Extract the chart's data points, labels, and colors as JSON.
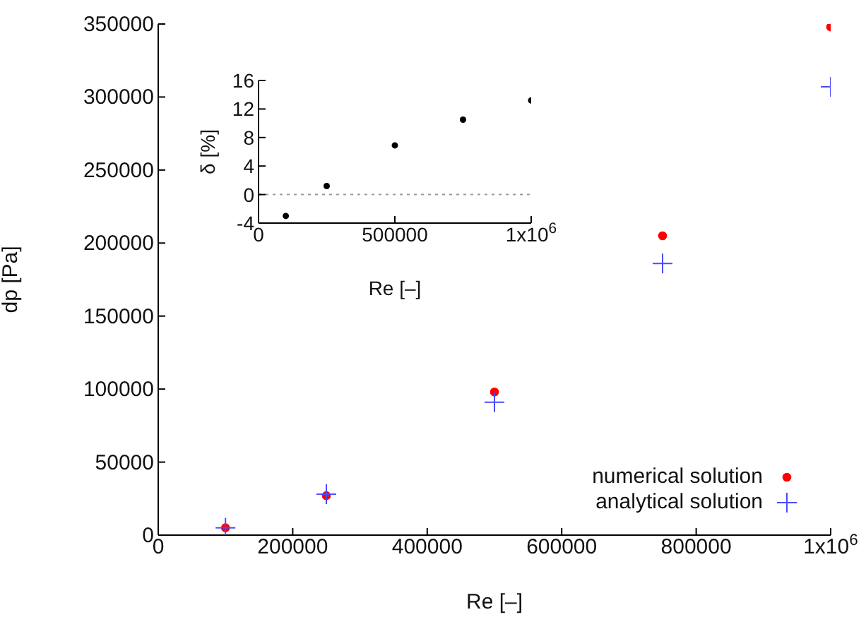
{
  "chart_data": [
    {
      "type": "scatter",
      "xlabel": "Re [–]",
      "ylabel": "dp [Pa]",
      "xlim": [
        0,
        1000000
      ],
      "xticks": [
        0,
        200000,
        400000,
        600000,
        800000,
        {
          "value": 1000000,
          "label": "1x10$^{6}$"
        }
      ],
      "ylim": [
        0,
        350000
      ],
      "yticks": [
        0,
        50000,
        100000,
        150000,
        200000,
        250000,
        300000,
        350000
      ],
      "x": [
        100000,
        250000,
        500000,
        750000,
        1000000
      ],
      "legend": "bottom right",
      "grid": false,
      "series": [
        {
          "name": "numerical solution",
          "color": "#ff0000",
          "marker": "circle",
          "values": [
            5000,
            27000,
            98000,
            205000,
            348000
          ]
        },
        {
          "name": "analytical solution",
          "color": "#4a4aff",
          "marker": "cross",
          "values": [
            5000,
            28000,
            91000,
            186000,
            307000
          ]
        }
      ]
    },
    {
      "type": "scatter",
      "xlabel": "Re [–]",
      "ylabel": "δ [%]",
      "xlim": [
        0,
        1000000
      ],
      "xticks": [
        0,
        500000,
        {
          "value": 1000000,
          "label": "1x10$^{6}$"
        }
      ],
      "ylim": [
        -4,
        16
      ],
      "yticks": [
        -4,
        0,
        4,
        8,
        12,
        16
      ],
      "x": [
        100000,
        250000,
        500000,
        750000,
        1000000
      ],
      "legend": false,
      "grid": false,
      "marker": "circle",
      "series": [
        {
          "color": "#000000",
          "values": [
            -3,
            1.2,
            6.9,
            10.5,
            13.2
          ]
        }
      ],
      "ref_lines": [
        {
          "axis": "y",
          "value": 0,
          "color": "#999999",
          "line_style": "dotted"
        }
      ]
    }
  ]
}
